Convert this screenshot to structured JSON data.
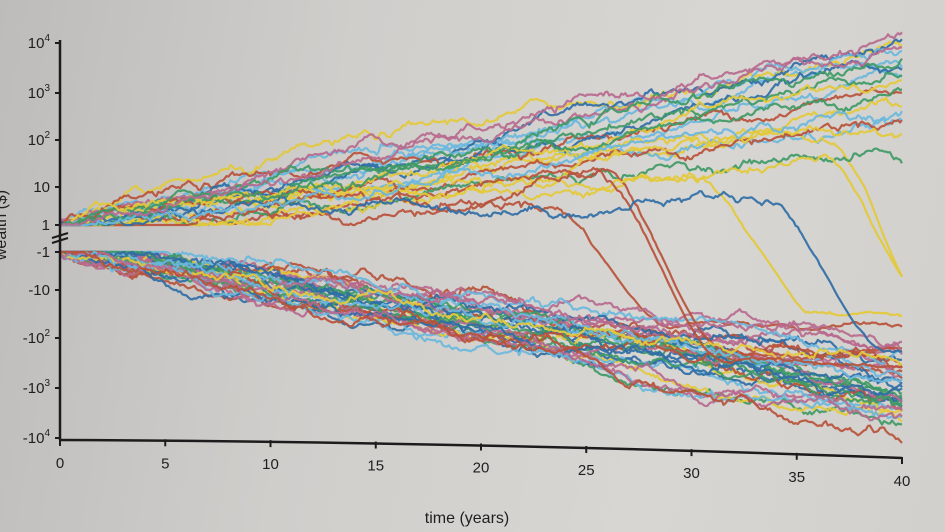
{
  "chart_data": {
    "type": "line",
    "xlabel": "time (years)",
    "ylabel": "wealth ($)",
    "xlim": [
      0,
      40
    ],
    "x_ticks": [
      0,
      5,
      10,
      15,
      20,
      25,
      30,
      35,
      40
    ],
    "y_scale": "symlog",
    "y_ticks_positive": [
      {
        "base": "10",
        "exp": "4",
        "value": 10000
      },
      {
        "base": "10",
        "exp": "3",
        "value": 1000
      },
      {
        "base": "10",
        "exp": "2",
        "value": 100
      },
      {
        "base": "10",
        "exp": "",
        "value": 10
      },
      {
        "base": "1",
        "exp": "",
        "value": 1
      }
    ],
    "y_ticks_negative": [
      {
        "base": "-1",
        "exp": "",
        "value": -1
      },
      {
        "base": "-10",
        "exp": "",
        "value": -10
      },
      {
        "base": "-10",
        "exp": "2",
        "value": -100
      },
      {
        "base": "-10",
        "exp": "3",
        "value": -1000
      },
      {
        "base": "-10",
        "exp": "4",
        "value": -10000
      }
    ],
    "start_value": 1,
    "num_trajectories": 60,
    "series_colors": [
      "#2f6ea6",
      "#e3c93a",
      "#b8513b",
      "#3f9a66",
      "#6ab7dd",
      "#b76a8e"
    ],
    "legend": "none",
    "grid": false
  }
}
